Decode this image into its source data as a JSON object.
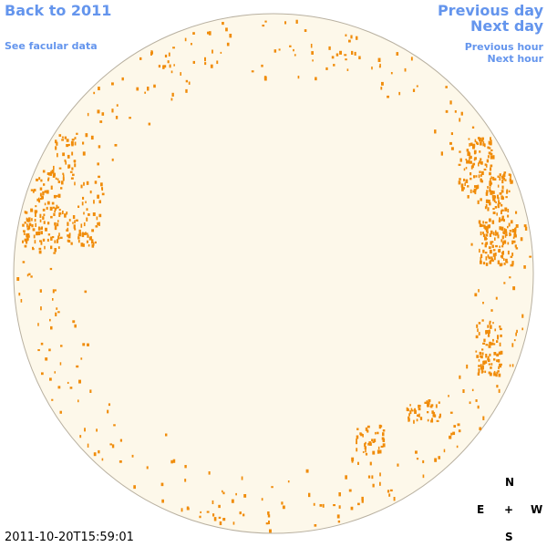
{
  "nav": {
    "back": "Back to 2011",
    "facular": "See facular data",
    "previous_day": "Previous day",
    "next_day": "Next day",
    "previous_hour": "Previous hour",
    "next_hour": "Next hour"
  },
  "compass": {
    "north": "N",
    "east": "E",
    "center": "+",
    "west": "W",
    "south": "S"
  },
  "timestamp": "2011-10-20T15:59:01"
}
